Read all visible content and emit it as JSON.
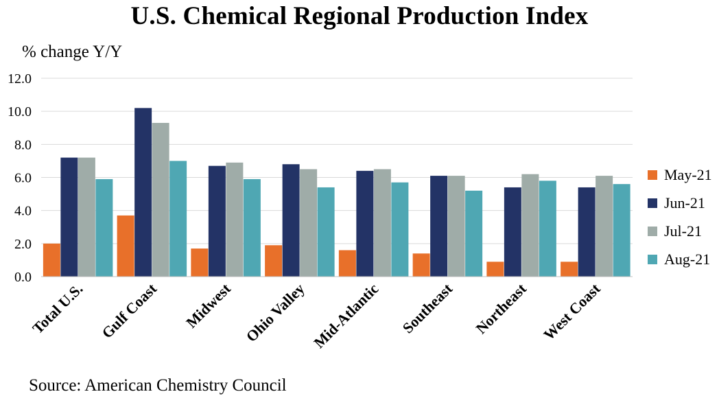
{
  "chart_data": {
    "type": "bar",
    "title": "U.S. Chemical Regional Production Index",
    "ylabel": "% change Y/Y",
    "source": "Source: American Chemistry Council",
    "categories": [
      "Total U.S.",
      "Gulf Coast",
      "Midwest",
      "Ohio Valley",
      "Mid-Atlantic",
      "Southeast",
      "Northeast",
      "West Coast"
    ],
    "series": [
      {
        "name": "May-21",
        "color": "#e8702a",
        "values": [
          2.0,
          3.7,
          1.7,
          1.9,
          1.6,
          1.4,
          0.9,
          0.9
        ]
      },
      {
        "name": "Jun-21",
        "color": "#233366",
        "values": [
          7.2,
          10.2,
          6.7,
          6.8,
          6.4,
          6.1,
          5.4,
          5.4
        ]
      },
      {
        "name": "Jul-21",
        "color": "#9faca8",
        "values": [
          7.2,
          9.3,
          6.9,
          6.5,
          6.5,
          6.1,
          6.2,
          6.1
        ]
      },
      {
        "name": "Aug-21",
        "color": "#4fa7b3",
        "values": [
          5.9,
          7.0,
          5.9,
          5.4,
          5.7,
          5.2,
          5.8,
          5.6
        ]
      }
    ],
    "yticks": [
      "0.0",
      "2.0",
      "4.0",
      "6.0",
      "8.0",
      "10.0",
      "12.0"
    ],
    "ylim": [
      0,
      12
    ],
    "grid": true,
    "legend": "right"
  }
}
